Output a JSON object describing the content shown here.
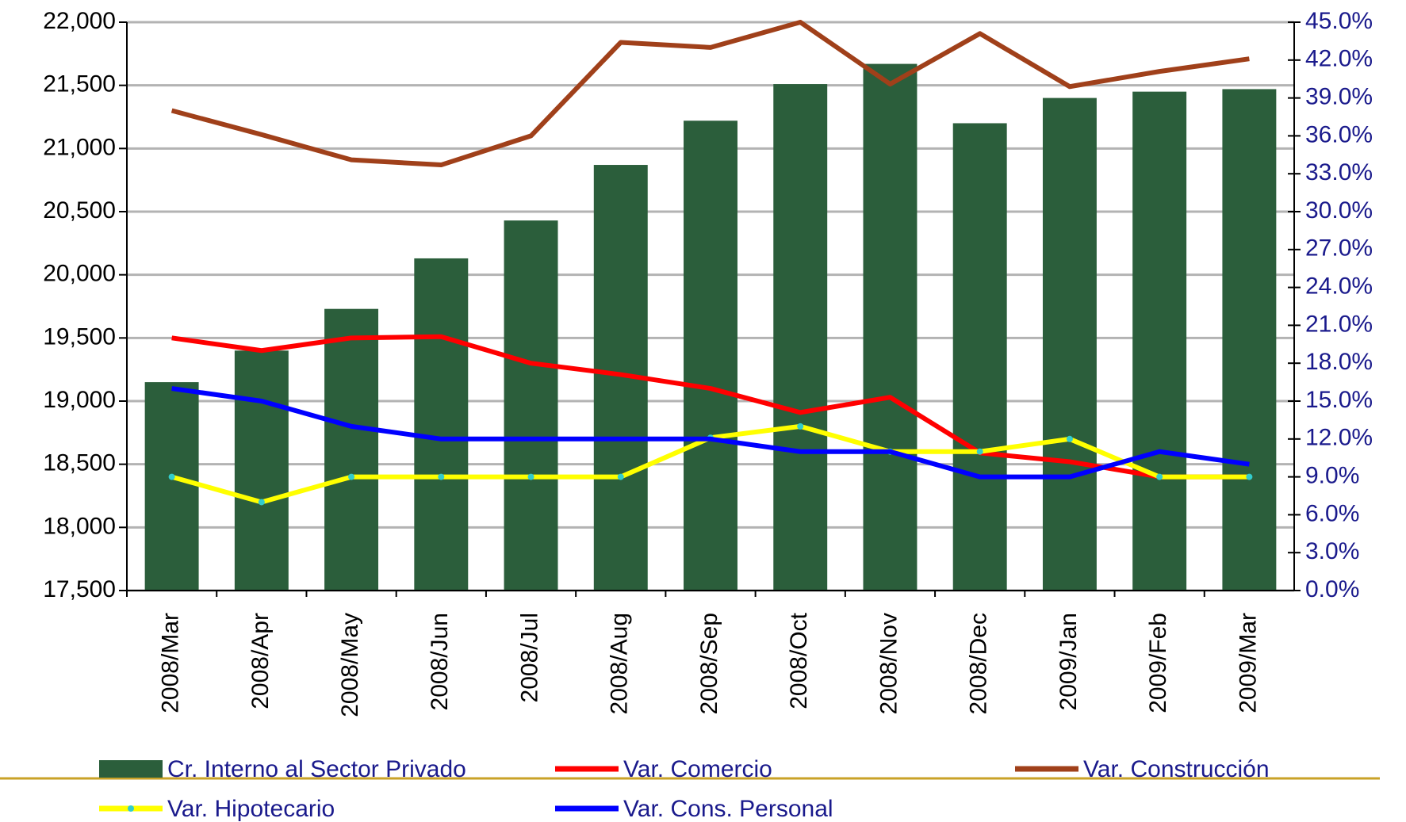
{
  "chart_data": {
    "type": "bar",
    "categories": [
      "2008/Mar",
      "2008/Apr",
      "2008/May",
      "2008/Jun",
      "2008/Jul",
      "2008/Aug",
      "2008/Sep",
      "2008/Oct",
      "2008/Nov",
      "2008/Dec",
      "2009/Jan",
      "2009/Feb",
      "2009/Mar"
    ],
    "ylim": [
      17500,
      22000
    ],
    "yticks": [
      {
        "value": 17500,
        "label": "17,500"
      },
      {
        "value": 18000,
        "label": "18,000"
      },
      {
        "value": 18500,
        "label": "18,500"
      },
      {
        "value": 19000,
        "label": "19,000"
      },
      {
        "value": 19500,
        "label": "19,500"
      },
      {
        "value": 20000,
        "label": "20,000"
      },
      {
        "value": 20500,
        "label": "20,500"
      },
      {
        "value": 21000,
        "label": "21,000"
      },
      {
        "value": 21500,
        "label": "21,500"
      },
      {
        "value": 22000,
        "label": "22,000"
      }
    ],
    "y2lim": [
      0,
      45
    ],
    "y2ticks": [
      {
        "value": 0,
        "label": "0.0%"
      },
      {
        "value": 3,
        "label": "3.0%"
      },
      {
        "value": 6,
        "label": "6.0%"
      },
      {
        "value": 9,
        "label": "9.0%"
      },
      {
        "value": 12,
        "label": "12.0%"
      },
      {
        "value": 15,
        "label": "15.0%"
      },
      {
        "value": 18,
        "label": "18.0%"
      },
      {
        "value": 21,
        "label": "21.0%"
      },
      {
        "value": 24,
        "label": "24.0%"
      },
      {
        "value": 27,
        "label": "27.0%"
      },
      {
        "value": 30,
        "label": "30.0%"
      },
      {
        "value": 33,
        "label": "33.0%"
      },
      {
        "value": 36,
        "label": "36.0%"
      },
      {
        "value": 39,
        "label": "39.0%"
      },
      {
        "value": 42,
        "label": "42.0%"
      },
      {
        "value": 45,
        "label": "45.0%"
      }
    ],
    "grid": true,
    "series": [
      {
        "name": "Cr. Interno al Sector Privado",
        "type": "bar",
        "color": "#2b5e3b",
        "values": [
          19150,
          19400,
          19730,
          20130,
          20430,
          20870,
          21220,
          21510,
          21670,
          21200,
          21400,
          21450,
          21470
        ]
      },
      {
        "name": "Var. Comercio",
        "type": "line",
        "axis": "y2",
        "color": "#ff0000",
        "values": [
          20.0,
          19.0,
          20.0,
          20.1,
          18.0,
          17.1,
          16.0,
          14.1,
          15.3,
          10.9,
          10.2,
          9.0,
          9.0
        ]
      },
      {
        "name": "Var. Construcción",
        "type": "line",
        "axis": "y2",
        "color": "#a0401a",
        "values": [
          38.0,
          36.1,
          34.1,
          33.7,
          36.0,
          43.4,
          43.0,
          45.0,
          40.1,
          44.1,
          39.9,
          41.1,
          42.1
        ]
      },
      {
        "name": "Var. Hipotecario",
        "type": "line",
        "axis": "y2",
        "color": "#ffff00",
        "marker_color": "#33cccc",
        "values": [
          9.0,
          7.0,
          9.0,
          9.0,
          9.0,
          9.0,
          12.1,
          13.0,
          11.0,
          11.0,
          12.0,
          9.0,
          9.0
        ]
      },
      {
        "name": "Var. Cons. Personal",
        "type": "line",
        "axis": "y2",
        "color": "#0000ff",
        "values": [
          16.0,
          15.0,
          13.0,
          12.0,
          12.0,
          12.0,
          12.0,
          11.0,
          11.0,
          9.0,
          9.0,
          11.0,
          10.0
        ]
      }
    ]
  }
}
